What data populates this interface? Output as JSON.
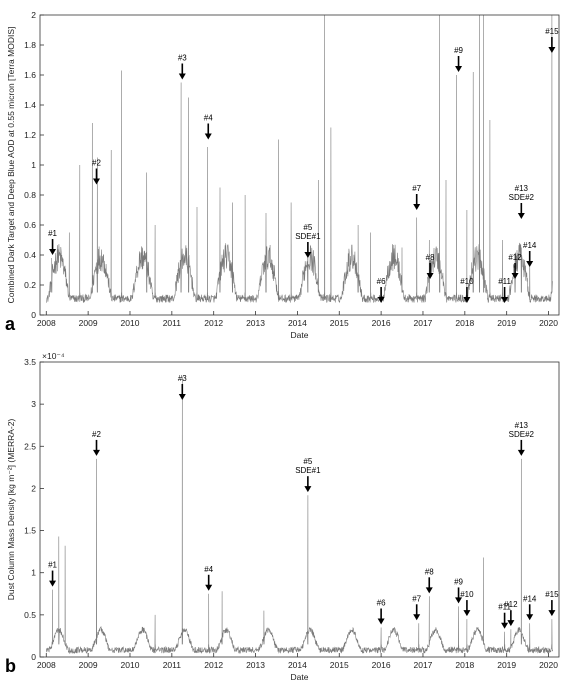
{
  "chart_data": [
    {
      "type": "line",
      "panel_label": "a",
      "xlabel": "Date",
      "ylabel": "Combined Dark Target and Deep Blue AOD at 0.55 micron [Terra MODIS]",
      "xlim": [
        2007.85,
        2020.25
      ],
      "ylim": [
        0,
        2
      ],
      "x_ticks": [
        2008,
        2009,
        2010,
        2011,
        2012,
        2013,
        2014,
        2015,
        2016,
        2017,
        2018,
        2019,
        2020
      ],
      "y_ticks": [
        0,
        0.2,
        0.4,
        0.6,
        0.8,
        1,
        1.2,
        1.4,
        1.6,
        1.8,
        2
      ],
      "series_color": "#7a7a7a",
      "baseline": 0.15,
      "spikes": [
        {
          "x": 2008.13,
          "y": 0.38
        },
        {
          "x": 2008.55,
          "y": 0.55
        },
        {
          "x": 2008.8,
          "y": 1.0
        },
        {
          "x": 2009.1,
          "y": 1.28
        },
        {
          "x": 2009.22,
          "y": 1.05
        },
        {
          "x": 2009.55,
          "y": 1.1
        },
        {
          "x": 2009.8,
          "y": 1.63
        },
        {
          "x": 2010.4,
          "y": 0.95
        },
        {
          "x": 2010.6,
          "y": 0.6
        },
        {
          "x": 2011.22,
          "y": 1.55
        },
        {
          "x": 2011.4,
          "y": 1.45
        },
        {
          "x": 2011.6,
          "y": 0.72
        },
        {
          "x": 2011.85,
          "y": 1.12
        },
        {
          "x": 2012.15,
          "y": 0.85
        },
        {
          "x": 2012.45,
          "y": 0.75
        },
        {
          "x": 2012.75,
          "y": 0.8
        },
        {
          "x": 2013.25,
          "y": 0.68
        },
        {
          "x": 2013.55,
          "y": 1.17
        },
        {
          "x": 2013.85,
          "y": 0.75
        },
        {
          "x": 2014.25,
          "y": 0.4
        },
        {
          "x": 2014.5,
          "y": 0.9
        },
        {
          "x": 2014.65,
          "y": 2.0
        },
        {
          "x": 2014.8,
          "y": 1.25
        },
        {
          "x": 2015.45,
          "y": 0.6
        },
        {
          "x": 2015.75,
          "y": 0.55
        },
        {
          "x": 2016.5,
          "y": 0.45
        },
        {
          "x": 2016.85,
          "y": 0.65
        },
        {
          "x": 2017.15,
          "y": 0.5
        },
        {
          "x": 2017.4,
          "y": 2.0
        },
        {
          "x": 2017.55,
          "y": 0.9
        },
        {
          "x": 2017.8,
          "y": 1.6
        },
        {
          "x": 2018.05,
          "y": 0.7
        },
        {
          "x": 2018.2,
          "y": 1.62
        },
        {
          "x": 2018.35,
          "y": 2.0
        },
        {
          "x": 2018.45,
          "y": 2.0
        },
        {
          "x": 2018.6,
          "y": 1.3
        },
        {
          "x": 2018.9,
          "y": 0.5
        },
        {
          "x": 2019.2,
          "y": 0.38
        },
        {
          "x": 2019.35,
          "y": 0.45
        },
        {
          "x": 2019.55,
          "y": 0.4
        },
        {
          "x": 2020.08,
          "y": 2.0
        }
      ],
      "annotations": [
        {
          "text": "#1",
          "x": 2008.15,
          "y": 0.38
        },
        {
          "text": "#2",
          "x": 2009.2,
          "y": 0.85
        },
        {
          "text": "#3",
          "x": 2011.25,
          "y": 1.55
        },
        {
          "text": "#4",
          "x": 2011.87,
          "y": 1.15
        },
        {
          "text": "#5",
          "x": 2014.25,
          "y": 0.36
        },
        {
          "text": "SDE#1",
          "x": 2014.25,
          "y": 0.36
        },
        {
          "text": "#6",
          "x": 2016.0,
          "y": 0.06
        },
        {
          "text": "#7",
          "x": 2016.85,
          "y": 0.68
        },
        {
          "text": "#8",
          "x": 2017.17,
          "y": 0.22
        },
        {
          "text": "#9",
          "x": 2017.85,
          "y": 1.6
        },
        {
          "text": "#10",
          "x": 2018.05,
          "y": 0.06
        },
        {
          "text": "#11",
          "x": 2018.95,
          "y": 0.06
        },
        {
          "text": "#12",
          "x": 2019.2,
          "y": 0.22
        },
        {
          "text": "#13",
          "x": 2019.35,
          "y": 0.62
        },
        {
          "text": "SDE#2",
          "x": 2019.35,
          "y": 0.62
        },
        {
          "text": "#14",
          "x": 2019.55,
          "y": 0.3
        },
        {
          "text": "#15",
          "x": 2020.08,
          "y": 1.88
        }
      ]
    },
    {
      "type": "line",
      "panel_label": "b",
      "xlabel": "Date",
      "ylabel": "Dust Column Mass Density [kg m⁻²] (MERRA-2)",
      "y_exponent": "×10⁻⁴",
      "xlim": [
        2007.85,
        2020.25
      ],
      "ylim": [
        0,
        3.5
      ],
      "x_ticks": [
        2008,
        2009,
        2010,
        2011,
        2012,
        2013,
        2014,
        2015,
        2016,
        2017,
        2018,
        2019,
        2020
      ],
      "y_ticks": [
        0,
        0.5,
        1,
        1.5,
        2,
        2.5,
        3,
        3.5
      ],
      "series_color": "#7a7a7a",
      "baseline": 0.15,
      "spikes": [
        {
          "x": 2008.15,
          "y": 0.8
        },
        {
          "x": 2008.3,
          "y": 1.43
        },
        {
          "x": 2008.45,
          "y": 1.32
        },
        {
          "x": 2009.2,
          "y": 2.35
        },
        {
          "x": 2010.6,
          "y": 0.5
        },
        {
          "x": 2011.25,
          "y": 3.32
        },
        {
          "x": 2011.88,
          "y": 0.75
        },
        {
          "x": 2012.2,
          "y": 0.78
        },
        {
          "x": 2013.2,
          "y": 0.55
        },
        {
          "x": 2014.25,
          "y": 1.92
        },
        {
          "x": 2016.0,
          "y": 0.35
        },
        {
          "x": 2016.9,
          "y": 0.4
        },
        {
          "x": 2017.15,
          "y": 0.72
        },
        {
          "x": 2017.85,
          "y": 0.6
        },
        {
          "x": 2018.05,
          "y": 0.45
        },
        {
          "x": 2018.45,
          "y": 1.18
        },
        {
          "x": 2018.95,
          "y": 0.3
        },
        {
          "x": 2019.1,
          "y": 0.33
        },
        {
          "x": 2019.35,
          "y": 2.35
        },
        {
          "x": 2019.55,
          "y": 0.4
        },
        {
          "x": 2020.08,
          "y": 0.45
        }
      ],
      "annotations": [
        {
          "text": "#1",
          "x": 2008.15,
          "y": 0.8
        },
        {
          "text": "#2",
          "x": 2009.2,
          "y": 2.35
        },
        {
          "text": "#3",
          "x": 2011.25,
          "y": 3.32
        },
        {
          "text": "#4",
          "x": 2011.88,
          "y": 0.75
        },
        {
          "text": "#5",
          "x": 2014.25,
          "y": 1.92
        },
        {
          "text": "SDE#1",
          "x": 2014.25,
          "y": 1.92
        },
        {
          "text": "#6",
          "x": 2016.0,
          "y": 0.35
        },
        {
          "text": "#7",
          "x": 2016.85,
          "y": 0.4
        },
        {
          "text": "#8",
          "x": 2017.15,
          "y": 0.72
        },
        {
          "text": "#9",
          "x": 2017.85,
          "y": 0.6
        },
        {
          "text": "#10",
          "x": 2018.05,
          "y": 0.45
        },
        {
          "text": "#11",
          "x": 2018.95,
          "y": 0.3
        },
        {
          "text": "#12",
          "x": 2019.1,
          "y": 0.33
        },
        {
          "text": "#13",
          "x": 2019.35,
          "y": 2.35
        },
        {
          "text": "SDE#2",
          "x": 2019.35,
          "y": 2.35
        },
        {
          "text": "#14",
          "x": 2019.55,
          "y": 0.4
        },
        {
          "text": "#15",
          "x": 2020.08,
          "y": 0.45
        }
      ]
    }
  ]
}
